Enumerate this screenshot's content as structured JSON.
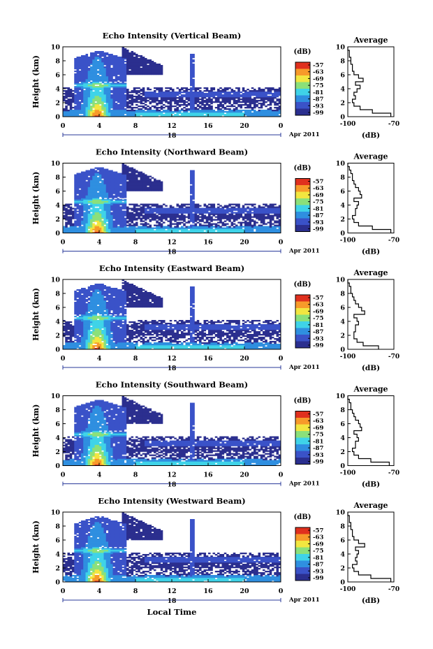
{
  "figure": {
    "shared_xlabel": "Local Time",
    "date_label": "Apr 2011",
    "colorbar_unit": "(dB)",
    "colorbar_ticks": [
      "-57",
      "-63",
      "-69",
      "-75",
      "-81",
      "-87",
      "-93",
      "-99"
    ],
    "colormap": [
      "#ffffff",
      "#2b2f8f",
      "#3a52c8",
      "#2f8fe0",
      "#3fd3e8",
      "#8be07a",
      "#f2e640",
      "#f79a2a",
      "#e0301e"
    ],
    "avg_title": "Average",
    "avg_xlabel": "(dB)"
  },
  "chart_data": [
    {
      "type": "heatmap",
      "title": "Echo Intensity (Vertical Beam)",
      "ylabel": "Height (km)",
      "xticks": [
        "0",
        "4",
        "8",
        "12",
        "16",
        "20",
        "0"
      ],
      "yticks": [
        "0",
        "2",
        "4",
        "6",
        "8",
        "10"
      ],
      "day_label": "18",
      "xlim": [
        0,
        24
      ],
      "ylim": [
        0,
        10
      ],
      "average_profile": {
        "title": "Average",
        "xlabel": "(dB)",
        "xticks": [
          "-100",
          "-70"
        ],
        "yticks": [
          "0",
          "2",
          "4",
          "6",
          "8",
          "10"
        ],
        "xlim": [
          -100,
          -70
        ],
        "ylim": [
          0,
          10
        ],
        "height": [
          0,
          0.5,
          1,
          1.5,
          2,
          2.5,
          3,
          3.5,
          4,
          4.5,
          5,
          5.5,
          6,
          6.5,
          7,
          7.5,
          8,
          8.5,
          9,
          9.5
        ],
        "db": [
          -72,
          -84,
          -92,
          -96,
          -97,
          -95,
          -96,
          -94,
          -92,
          -95,
          -90,
          -93,
          -96,
          -97,
          -97,
          -98,
          -98,
          -99,
          -99,
          -100
        ]
      }
    },
    {
      "type": "heatmap",
      "title": "Echo Intensity (Northward Beam)",
      "ylabel": "Height (km)",
      "xticks": [
        "0",
        "4",
        "8",
        "12",
        "16",
        "20",
        "0"
      ],
      "yticks": [
        "0",
        "2",
        "4",
        "6",
        "8",
        "10"
      ],
      "day_label": "18",
      "xlim": [
        0,
        24
      ],
      "ylim": [
        0,
        10
      ],
      "average_profile": {
        "title": "Average",
        "xlabel": "(dB)",
        "xticks": [
          "-100",
          "-70"
        ],
        "yticks": [
          "0",
          "2",
          "4",
          "6",
          "8",
          "10"
        ],
        "xlim": [
          -100,
          -70
        ],
        "ylim": [
          0,
          10
        ],
        "height": [
          0,
          0.5,
          1,
          1.5,
          2,
          2.5,
          3,
          3.5,
          4,
          4.5,
          5,
          5.5,
          6,
          6.5,
          7,
          7.5,
          8,
          8.5,
          9,
          9.5
        ],
        "db": [
          -72,
          -84,
          -93,
          -96,
          -97,
          -95,
          -95,
          -94,
          -93,
          -96,
          -91,
          -92,
          -93,
          -95,
          -96,
          -97,
          -97,
          -98,
          -99,
          -100
        ]
      }
    },
    {
      "type": "heatmap",
      "title": "Echo Intensity (Eastward Beam)",
      "ylabel": "Height (km)",
      "xticks": [
        "0",
        "4",
        "8",
        "12",
        "16",
        "20",
        "0"
      ],
      "yticks": [
        "0",
        "2",
        "4",
        "6",
        "8",
        "10"
      ],
      "day_label": "18",
      "xlim": [
        0,
        24
      ],
      "ylim": [
        0,
        10
      ],
      "average_profile": {
        "title": "Average",
        "xlabel": "(dB)",
        "xticks": [
          "-100",
          "-70"
        ],
        "yticks": [
          "0",
          "2",
          "4",
          "6",
          "8",
          "10"
        ],
        "xlim": [
          -100,
          -70
        ],
        "ylim": [
          0,
          10
        ],
        "height": [
          0,
          0.5,
          1,
          1.5,
          2,
          2.5,
          3,
          3.5,
          4,
          4.5,
          5,
          5.5,
          6,
          6.5,
          7,
          7.5,
          8,
          8.5,
          9,
          9.5
        ],
        "db": [
          -80,
          -90,
          -94,
          -96,
          -96,
          -95,
          -95,
          -93,
          -94,
          -96,
          -89,
          -91,
          -93,
          -95,
          -96,
          -97,
          -98,
          -98,
          -99,
          -100
        ]
      }
    },
    {
      "type": "heatmap",
      "title": "Echo Intensity (Southward Beam)",
      "ylabel": "Height (km)",
      "xticks": [
        "0",
        "4",
        "8",
        "12",
        "16",
        "20",
        "0"
      ],
      "yticks": [
        "0",
        "2",
        "4",
        "6",
        "8",
        "10"
      ],
      "day_label": "18",
      "xlim": [
        0,
        24
      ],
      "ylim": [
        0,
        10
      ],
      "average_profile": {
        "title": "Average",
        "xlabel": "(dB)",
        "xticks": [
          "-100",
          "-70"
        ],
        "yticks": [
          "0",
          "2",
          "4",
          "6",
          "8",
          "10"
        ],
        "xlim": [
          -100,
          -70
        ],
        "ylim": [
          0,
          10
        ],
        "height": [
          0,
          0.5,
          1,
          1.5,
          2,
          2.5,
          3,
          3.5,
          4,
          4.5,
          5,
          5.5,
          6,
          6.5,
          7,
          7.5,
          8,
          8.5,
          9,
          9.5
        ],
        "db": [
          -73,
          -85,
          -93,
          -96,
          -97,
          -95,
          -95,
          -93,
          -94,
          -96,
          -91,
          -92,
          -93,
          -95,
          -96,
          -97,
          -98,
          -98,
          -99,
          -100
        ]
      }
    },
    {
      "type": "heatmap",
      "title": "Echo Intensity (Westward Beam)",
      "ylabel": "Height (km)",
      "xticks": [
        "0",
        "4",
        "8",
        "12",
        "16",
        "20",
        "0"
      ],
      "yticks": [
        "0",
        "2",
        "4",
        "6",
        "8",
        "10"
      ],
      "day_label": "18",
      "xlim": [
        0,
        24
      ],
      "ylim": [
        0,
        10
      ],
      "average_profile": {
        "title": "Average",
        "xlabel": "(dB)",
        "xticks": [
          "-100",
          "-70"
        ],
        "yticks": [
          "0",
          "2",
          "4",
          "6",
          "8",
          "10"
        ],
        "xlim": [
          -100,
          -70
        ],
        "ylim": [
          0,
          10
        ],
        "height": [
          0,
          0.5,
          1,
          1.5,
          2,
          2.5,
          3,
          3.5,
          4,
          4.5,
          5,
          5.5,
          6,
          6.5,
          7,
          7.5,
          8,
          8.5,
          9,
          9.5
        ],
        "db": [
          -72,
          -85,
          -93,
          -96,
          -97,
          -94,
          -95,
          -94,
          -93,
          -95,
          -89,
          -93,
          -96,
          -97,
          -97,
          -98,
          -98,
          -99,
          -99,
          -100
        ]
      }
    }
  ]
}
